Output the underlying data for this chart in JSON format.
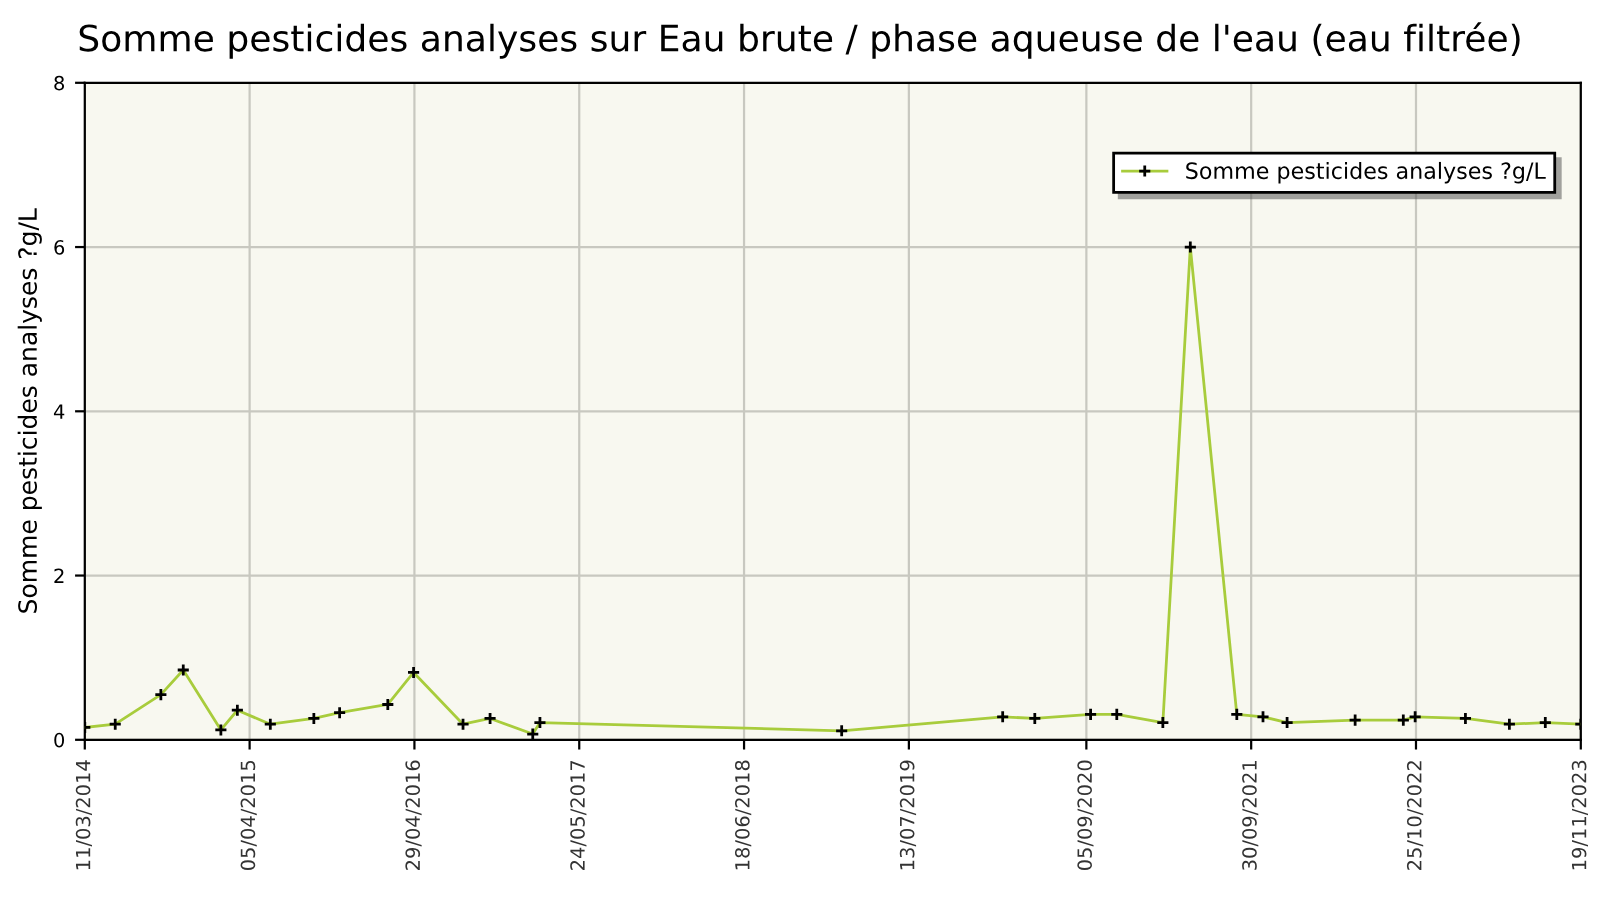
{
  "chart_data": {
    "type": "line",
    "title": "Somme pesticides analyses sur Eau brute / phase aqueuse de l'eau (eau filtrée)",
    "ylabel": "Somme pesticides analyses ?g/L",
    "x": [
      "2014-03-11",
      "2014-05-22",
      "2014-09-07",
      "2014-10-30",
      "2015-01-27",
      "2015-03-07",
      "2015-05-24",
      "2015-09-04",
      "2015-11-04",
      "2016-02-26",
      "2016-04-27",
      "2016-08-22",
      "2016-10-25",
      "2017-02-03",
      "2017-02-20",
      "2019-02-04",
      "2020-02-20",
      "2020-05-06",
      "2020-09-15",
      "2020-11-16",
      "2021-03-05",
      "2021-05-09",
      "2021-08-27",
      "2021-10-28",
      "2021-12-24",
      "2022-06-03",
      "2022-09-25",
      "2022-10-23",
      "2023-02-19",
      "2023-06-03",
      "2023-08-27",
      "2023-11-19"
    ],
    "series": [
      {
        "name": "Somme pesticides analyses ?g/L",
        "color": "#a8cc3c",
        "values": [
          0.15,
          0.19,
          0.55,
          0.85,
          0.12,
          0.36,
          0.19,
          0.26,
          0.33,
          0.43,
          0.82,
          0.19,
          0.26,
          0.07,
          0.21,
          0.11,
          0.28,
          0.26,
          0.31,
          0.31,
          0.21,
          6.0,
          0.31,
          0.28,
          0.21,
          0.24,
          0.24,
          0.28,
          0.26,
          0.19,
          0.21,
          0.19
        ]
      }
    ],
    "xlim": [
      "2014-03-11",
      "2023-11-19"
    ],
    "xticks": [
      {
        "value": "2014-03-11",
        "label": "11/03/2014"
      },
      {
        "value": "2015-04-05",
        "label": "05/04/2015"
      },
      {
        "value": "2016-04-29",
        "label": "29/04/2016"
      },
      {
        "value": "2017-05-24",
        "label": "24/05/2017"
      },
      {
        "value": "2018-06-18",
        "label": "18/06/2018"
      },
      {
        "value": "2019-07-13",
        "label": "13/07/2019"
      },
      {
        "value": "2020-09-05",
        "label": "05/09/2020"
      },
      {
        "value": "2021-09-30",
        "label": "30/09/2021"
      },
      {
        "value": "2022-10-25",
        "label": "25/10/2022"
      },
      {
        "value": "2023-11-19",
        "label": "19/11/2023"
      }
    ],
    "ylim": [
      0,
      8
    ],
    "yticks": [
      0,
      2,
      4,
      6,
      8
    ],
    "grid": true,
    "legend": "top right",
    "marker": "cross",
    "line_style": "solid"
  }
}
